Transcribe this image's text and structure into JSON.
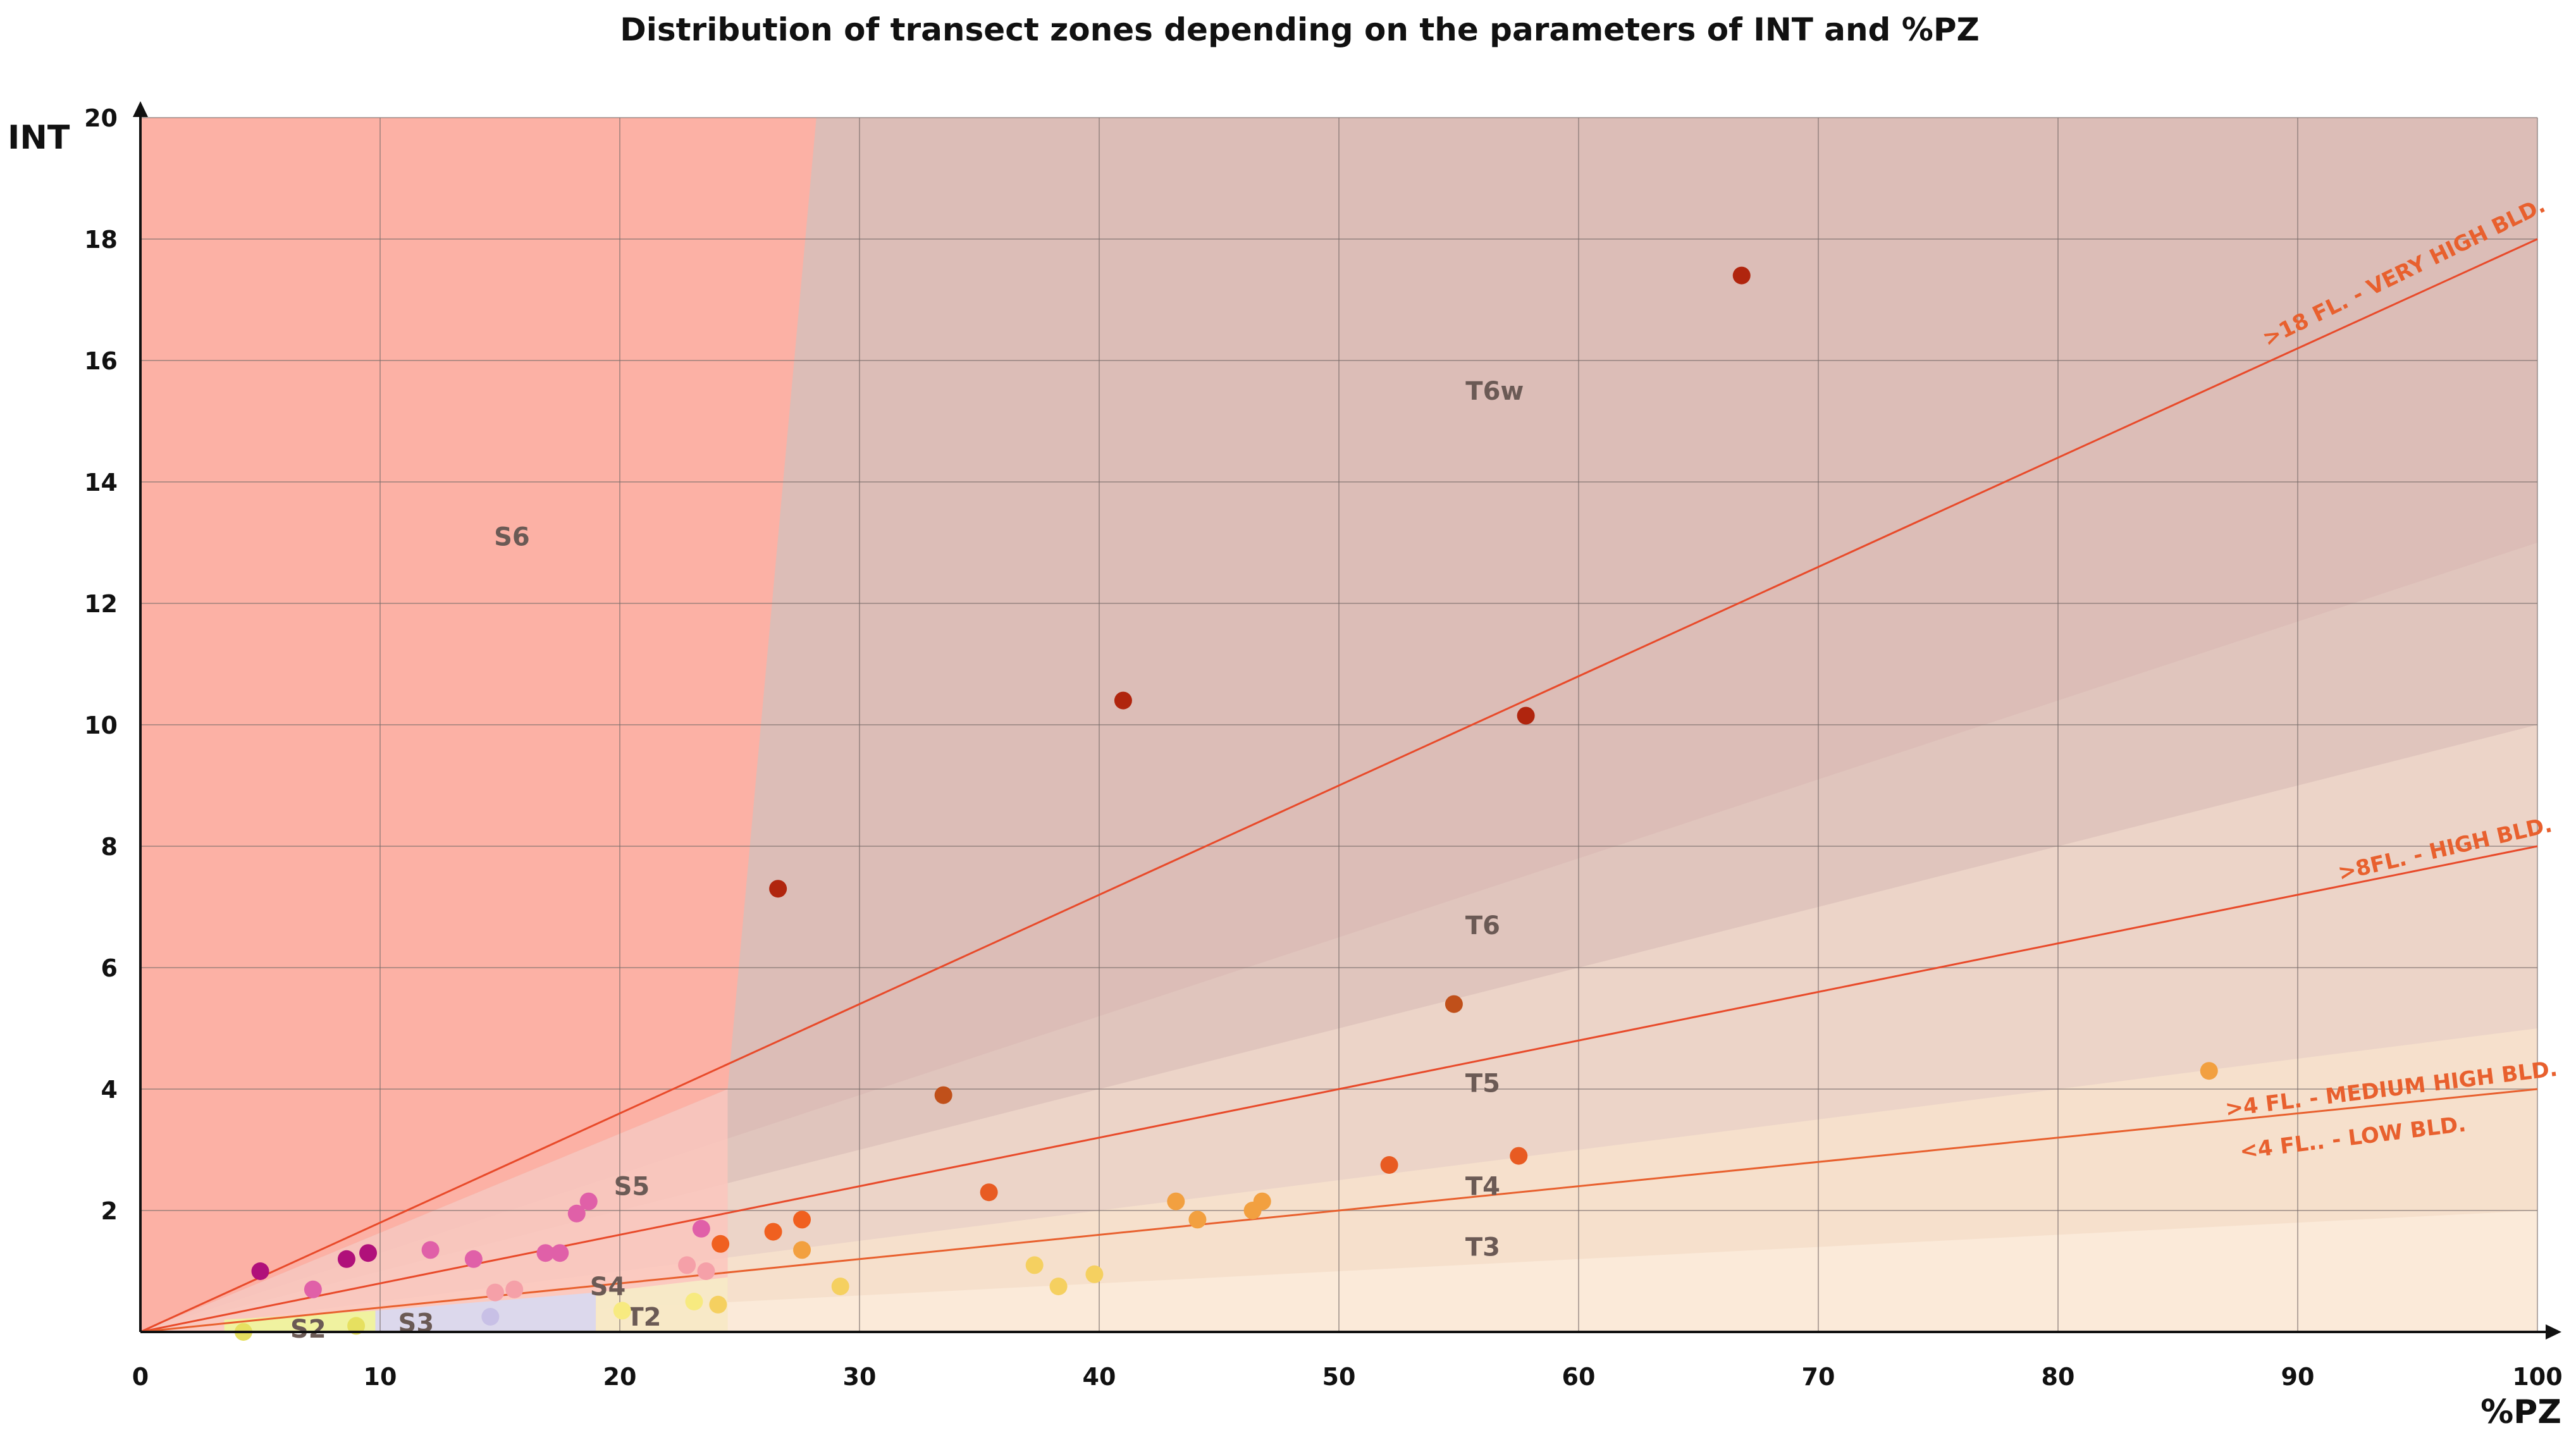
{
  "colors": {
    "s6": "#fcb1a5",
    "s6_inner": "#fcc6bd",
    "t6w": "#dcbdb7",
    "t6": "#e0c5bd",
    "t5": "#ecd4c8",
    "t4": "#f6e0cc",
    "t3": "#fbead9",
    "line": "#e84a2a",
    "label": "#e8602e",
    "grid": "#7a6e6c",
    "s2": "#f0f2a0",
    "s3": "#dcd8ec",
    "t2": "#f6f0c8"
  },
  "chart_data": {
    "type": "scatter",
    "title": "Distribution of transect zones depending on the parameters of INT and %PZ",
    "xlabel": "%PZ",
    "ylabel": "INT",
    "xlim": [
      0,
      100
    ],
    "ylim": [
      0,
      20
    ],
    "x_ticks": [
      0,
      10,
      20,
      30,
      40,
      50,
      60,
      70,
      80,
      90,
      100
    ],
    "y_ticks": [
      2,
      4,
      6,
      8,
      10,
      12,
      14,
      16,
      18,
      20
    ],
    "grid": true,
    "zones": [
      {
        "label": "S6",
        "x": 15.5,
        "y": 13.1
      },
      {
        "label": "T6w",
        "x": 56.5,
        "y": 15.5
      },
      {
        "label": "T6",
        "x": 56,
        "y": 6.7
      },
      {
        "label": "T5",
        "x": 56,
        "y": 4.1
      },
      {
        "label": "T4",
        "x": 56,
        "y": 2.4
      },
      {
        "label": "T3",
        "x": 56,
        "y": 1.4
      },
      {
        "label": "S5",
        "x": 20.5,
        "y": 2.4
      },
      {
        "label": "S4",
        "x": 19.5,
        "y": 0.75
      },
      {
        "label": "T2",
        "x": 21,
        "y": 0.25
      },
      {
        "label": "S3",
        "x": 11.5,
        "y": 0.15
      },
      {
        "label": "S2",
        "x": 7,
        "y": 0.05
      }
    ],
    "reference_lines": [
      {
        "label": ">18 FL. - VERY HIGH BLD.",
        "slope": 0.18,
        "color": "#e84a2a"
      },
      {
        "label": ">8FL. - HIGH BLD.",
        "slope": 0.08,
        "color": "#e84a2a"
      },
      {
        "label": ">4 FL. - MEDIUM HIGH BLD.",
        "slope": 0.04,
        "color": "#e8602e"
      },
      {
        "label": "<4 FL.. - LOW BLD.",
        "slope": 0.04,
        "color": "#e8602e"
      }
    ],
    "points": [
      {
        "x": 66.8,
        "y": 17.4,
        "color": "#b0250e"
      },
      {
        "x": 41,
        "y": 10.4,
        "color": "#b0250e"
      },
      {
        "x": 57.8,
        "y": 10.15,
        "color": "#b0250e"
      },
      {
        "x": 26.6,
        "y": 7.3,
        "color": "#b0250e"
      },
      {
        "x": 54.8,
        "y": 5.4,
        "color": "#c0501a"
      },
      {
        "x": 33.5,
        "y": 3.9,
        "color": "#c0501a"
      },
      {
        "x": 35.4,
        "y": 2.3,
        "color": "#e85b22"
      },
      {
        "x": 52.1,
        "y": 2.75,
        "color": "#e85b22"
      },
      {
        "x": 57.5,
        "y": 2.9,
        "color": "#e85b22"
      },
      {
        "x": 86.3,
        "y": 4.3,
        "color": "#f2a040"
      },
      {
        "x": 43.2,
        "y": 2.15,
        "color": "#f2a040"
      },
      {
        "x": 44.1,
        "y": 1.85,
        "color": "#f2a040"
      },
      {
        "x": 46.4,
        "y": 2.0,
        "color": "#f2a040"
      },
      {
        "x": 46.8,
        "y": 2.15,
        "color": "#f2a040"
      },
      {
        "x": 27.6,
        "y": 1.35,
        "color": "#f2a040"
      },
      {
        "x": 24.2,
        "y": 1.45,
        "color": "#f06020"
      },
      {
        "x": 26.4,
        "y": 1.65,
        "color": "#f06020"
      },
      {
        "x": 27.6,
        "y": 1.85,
        "color": "#f06020"
      },
      {
        "x": 29.2,
        "y": 0.75,
        "color": "#f5d060"
      },
      {
        "x": 37.3,
        "y": 1.1,
        "color": "#f5d060"
      },
      {
        "x": 38.3,
        "y": 0.75,
        "color": "#f5d060"
      },
      {
        "x": 39.8,
        "y": 0.95,
        "color": "#f5d060"
      },
      {
        "x": 24.1,
        "y": 0.45,
        "color": "#f5d060"
      },
      {
        "x": 23.1,
        "y": 0.5,
        "color": "#f7ea80"
      },
      {
        "x": 20.1,
        "y": 0.35,
        "color": "#f7ea80"
      },
      {
        "x": 23.4,
        "y": 1.7,
        "color": "#e060a8"
      },
      {
        "x": 22.8,
        "y": 1.1,
        "color": "#f5a0a8"
      },
      {
        "x": 23.6,
        "y": 1.0,
        "color": "#f5a0a8"
      },
      {
        "x": 14.8,
        "y": 0.65,
        "color": "#f5a0a8"
      },
      {
        "x": 15.6,
        "y": 0.7,
        "color": "#f5a0a8"
      },
      {
        "x": 18.7,
        "y": 2.15,
        "color": "#e060a8"
      },
      {
        "x": 18.2,
        "y": 1.95,
        "color": "#e060a8"
      },
      {
        "x": 17.5,
        "y": 1.3,
        "color": "#e060a8"
      },
      {
        "x": 16.9,
        "y": 1.3,
        "color": "#e060a8"
      },
      {
        "x": 13.9,
        "y": 1.2,
        "color": "#e060a8"
      },
      {
        "x": 12.1,
        "y": 1.35,
        "color": "#e060a8"
      },
      {
        "x": 9.5,
        "y": 1.3,
        "color": "#b0107a"
      },
      {
        "x": 8.6,
        "y": 1.2,
        "color": "#b0107a"
      },
      {
        "x": 5.0,
        "y": 1.0,
        "color": "#b0107a"
      },
      {
        "x": 7.2,
        "y": 0.7,
        "color": "#e060a8"
      },
      {
        "x": 14.6,
        "y": 0.25,
        "color": "#c8c0e6"
      },
      {
        "x": 9.0,
        "y": 0.1,
        "color": "#e6e060"
      },
      {
        "x": 4.3,
        "y": 0.0,
        "color": "#e6e060"
      }
    ]
  }
}
